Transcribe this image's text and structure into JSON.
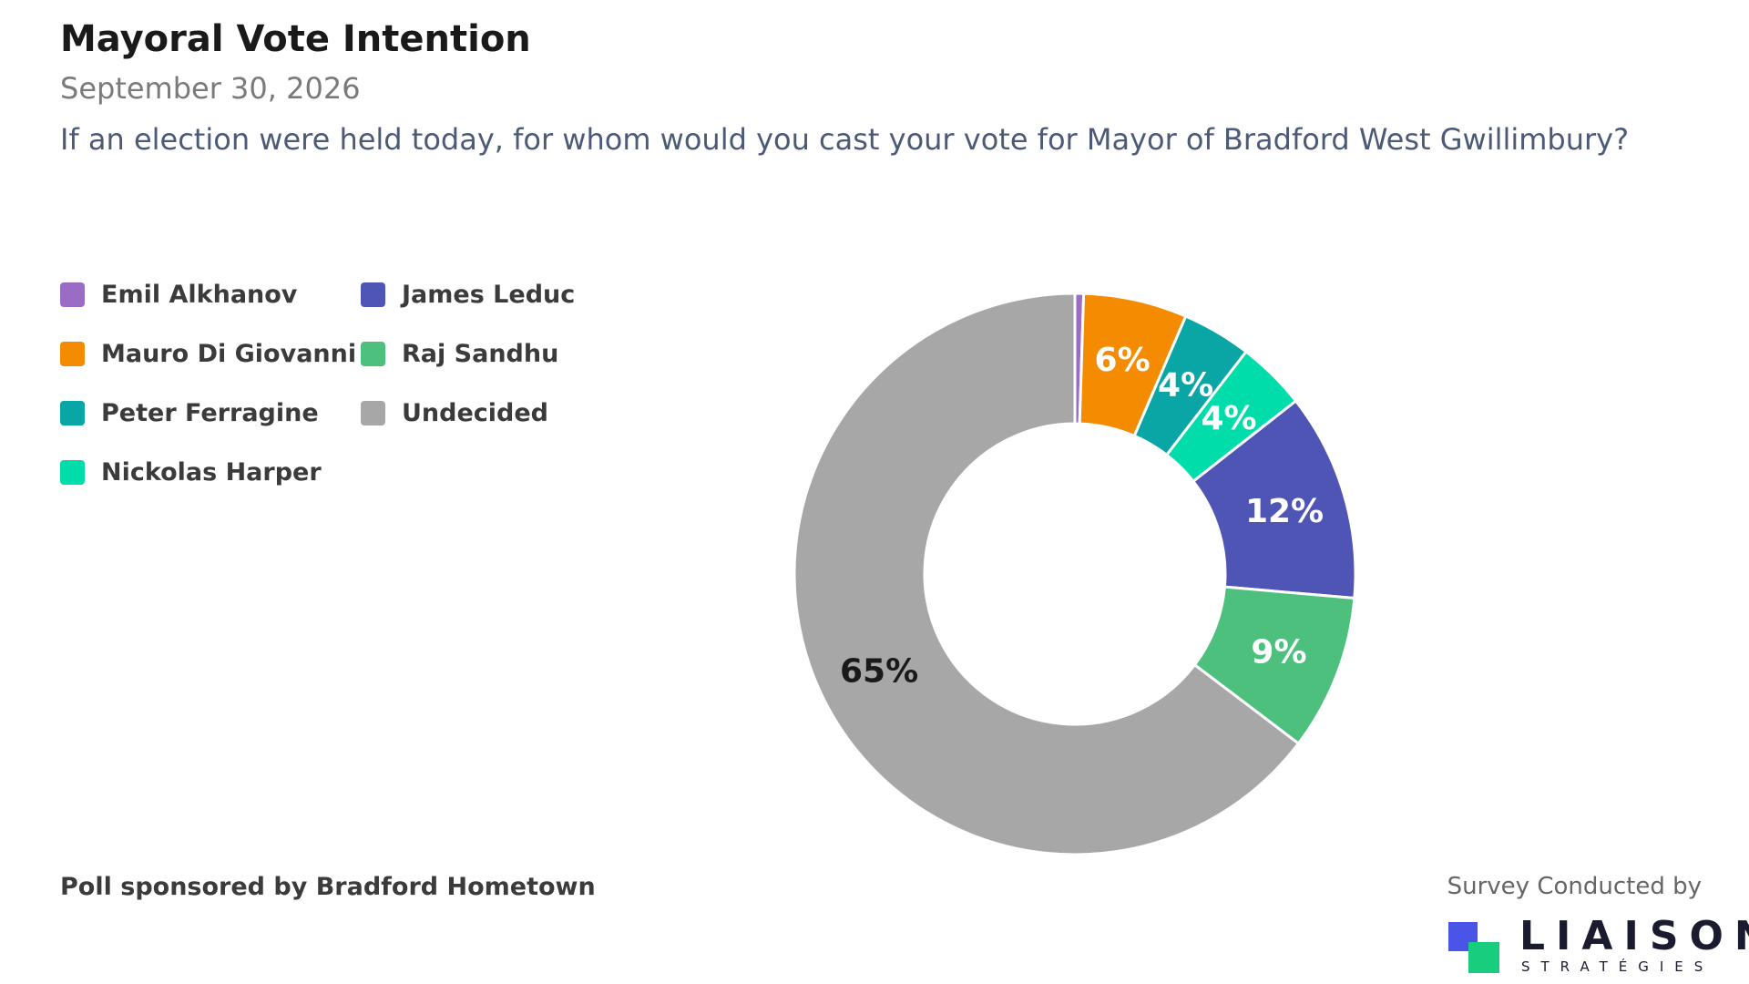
{
  "header": {
    "title": "Mayoral Vote Intention",
    "date": "September 30, 2026",
    "question": "If an election were held today, for whom would you cast your vote for Mayor of Bradford West Gwillimbury?"
  },
  "chart_data": {
    "type": "pie",
    "donut": true,
    "legend_position": "left",
    "categories": [
      "Emil Alkhanov",
      "Mauro Di Giovanni",
      "Peter Ferragine",
      "Nickolas Harper",
      "James Leduc",
      "Raj Sandhu",
      "Undecided"
    ],
    "values": [
      0.5,
      6,
      4,
      4,
      12,
      9,
      65
    ],
    "labels": [
      "",
      "6%",
      "4%",
      "4%",
      "12%",
      "9%",
      "65%"
    ],
    "colors": [
      "#9b6cc4",
      "#f48b00",
      "#0aa5a5",
      "#00ddaa",
      "#4f55b5",
      "#4dc07e",
      "#a7a7a7"
    ],
    "label_colors": [
      "#ffffff",
      "#ffffff",
      "#ffffff",
      "#ffffff",
      "#ffffff",
      "#ffffff",
      "#1a1a1a"
    ]
  },
  "footer": {
    "sponsor": "Poll sponsored by Bradford Hometown",
    "conducted_by": "Survey Conducted by",
    "logo_name": "LIAISON",
    "logo_sub": "STRATÉGIES",
    "logo_colors": [
      "#4a55e8",
      "#19cd7e"
    ]
  }
}
